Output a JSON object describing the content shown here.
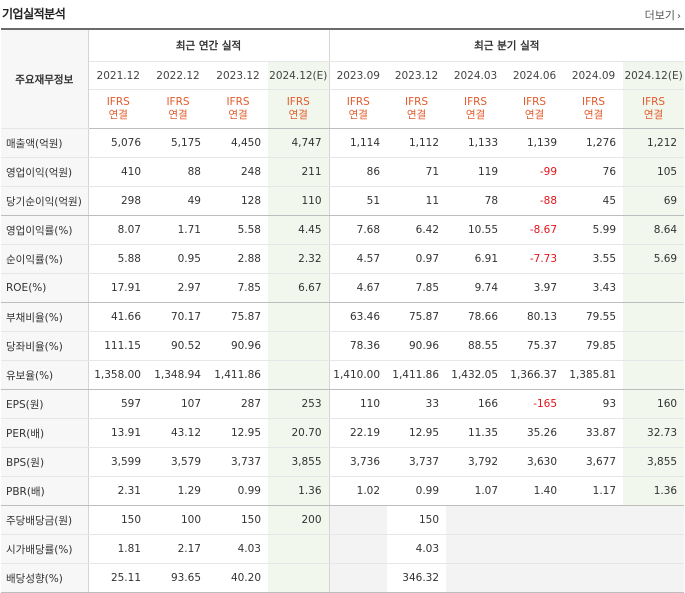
{
  "section": {
    "title": "기업실적분석",
    "more_label": "더보기"
  },
  "header": {
    "row_label": "주요재무정보",
    "annual_group": "최근 연간 실적",
    "quarter_group": "최근 분기 실적",
    "periods": [
      "2021.12",
      "2022.12",
      "2023.12",
      "2024.12(E)",
      "2023.09",
      "2023.12",
      "2024.03",
      "2024.06",
      "2024.09",
      "2024.12(E)"
    ],
    "std_top": "IFRS",
    "std_bottom": "연결"
  },
  "rows": [
    {
      "label": "매출액(억원)",
      "values": [
        "5,076",
        "5,175",
        "4,450",
        "4,747",
        "1,114",
        "1,112",
        "1,133",
        "1,139",
        "1,276",
        "1,212"
      ]
    },
    {
      "label": "영업이익(억원)",
      "values": [
        "410",
        "88",
        "248",
        "211",
        "86",
        "71",
        "119",
        "-99",
        "76",
        "105"
      ]
    },
    {
      "label": "당기순이익(억원)",
      "values": [
        "298",
        "49",
        "128",
        "110",
        "51",
        "11",
        "78",
        "-88",
        "45",
        "69"
      ]
    },
    {
      "label": "영업이익률(%)",
      "values": [
        "8.07",
        "1.71",
        "5.58",
        "4.45",
        "7.68",
        "6.42",
        "10.55",
        "-8.67",
        "5.99",
        "8.64"
      ]
    },
    {
      "label": "순이익률(%)",
      "values": [
        "5.88",
        "0.95",
        "2.88",
        "2.32",
        "4.57",
        "0.97",
        "6.91",
        "-7.73",
        "3.55",
        "5.69"
      ]
    },
    {
      "label": "ROE(%)",
      "values": [
        "17.91",
        "2.97",
        "7.85",
        "6.67",
        "4.67",
        "7.85",
        "9.74",
        "3.97",
        "3.43",
        ""
      ]
    },
    {
      "label": "부채비율(%)",
      "values": [
        "41.66",
        "70.17",
        "75.87",
        "",
        "63.46",
        "75.87",
        "78.66",
        "80.13",
        "79.55",
        ""
      ]
    },
    {
      "label": "당좌비율(%)",
      "values": [
        "111.15",
        "90.52",
        "90.96",
        "",
        "78.36",
        "90.96",
        "88.55",
        "75.37",
        "79.85",
        ""
      ]
    },
    {
      "label": "유보율(%)",
      "values": [
        "1,358.00",
        "1,348.94",
        "1,411.86",
        "",
        "1,410.00",
        "1,411.86",
        "1,432.05",
        "1,366.37",
        "1,385.81",
        ""
      ]
    },
    {
      "label": "EPS(원)",
      "values": [
        "597",
        "107",
        "287",
        "253",
        "110",
        "33",
        "166",
        "-165",
        "93",
        "160"
      ]
    },
    {
      "label": "PER(배)",
      "values": [
        "13.91",
        "43.12",
        "12.95",
        "20.70",
        "22.19",
        "12.95",
        "11.35",
        "35.26",
        "33.87",
        "32.73"
      ]
    },
    {
      "label": "BPS(원)",
      "values": [
        "3,599",
        "3,579",
        "3,737",
        "3,855",
        "3,736",
        "3,737",
        "3,792",
        "3,630",
        "3,677",
        "3,855"
      ]
    },
    {
      "label": "PBR(배)",
      "values": [
        "2.31",
        "1.29",
        "0.99",
        "1.36",
        "1.02",
        "0.99",
        "1.07",
        "1.40",
        "1.17",
        "1.36"
      ]
    },
    {
      "label": "주당배당금(원)",
      "values": [
        "150",
        "100",
        "150",
        "200",
        "",
        "150",
        "",
        "",
        "",
        ""
      ]
    },
    {
      "label": "시가배당률(%)",
      "values": [
        "1.81",
        "2.17",
        "4.03",
        "",
        "",
        "4.03",
        "",
        "",
        "",
        ""
      ]
    },
    {
      "label": "배당성향(%)",
      "values": [
        "25.11",
        "93.65",
        "40.20",
        "",
        "",
        "346.32",
        "",
        "",
        "",
        ""
      ]
    }
  ]
}
